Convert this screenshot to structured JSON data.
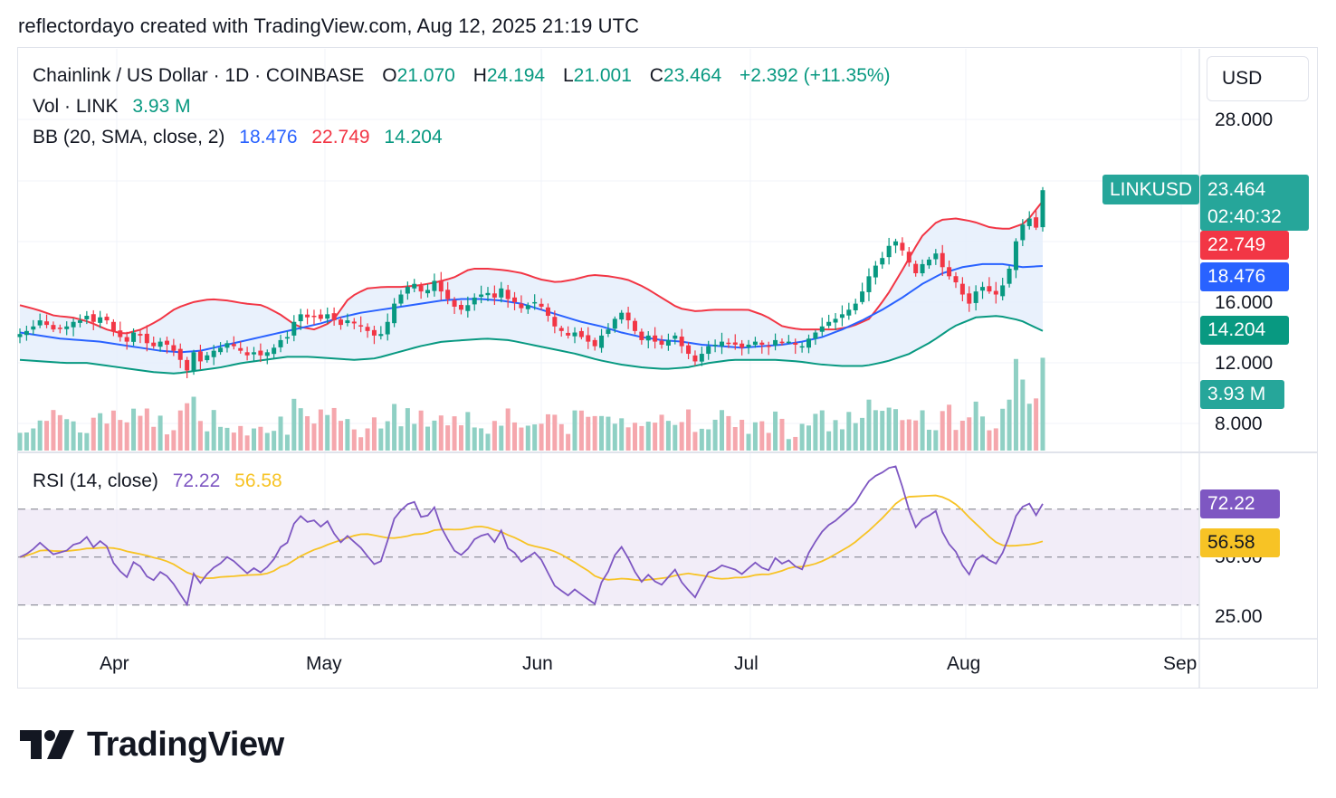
{
  "header": {
    "text": "reflectordayo created with TradingView.com, Aug 12, 2025 21:19 UTC"
  },
  "legend": {
    "symbol": "Chainlink / US Dollar · 1D · COINBASE",
    "o_label": "O",
    "o_value": "21.070",
    "h_label": "H",
    "h_value": "24.194",
    "l_label": "L",
    "l_value": "21.001",
    "c_label": "C",
    "c_value": "23.464",
    "change": "+2.392 (+11.35%)",
    "vol_label": "Vol · LINK",
    "vol_value": "3.93 M",
    "bb_label": "BB (20, SMA, close, 2)",
    "bb_basis": "18.476",
    "bb_upper": "22.749",
    "bb_lower": "14.204",
    "rsi_label": "RSI (14, close)",
    "rsi_value": "72.22",
    "rsi_ma": "56.58"
  },
  "currency_button": "USD",
  "price_axis": [
    "28.000",
    "16.000",
    "12.000",
    "8.000"
  ],
  "rsi_axis": [
    "50.00",
    "25.00"
  ],
  "time_axis": [
    "Apr",
    "May",
    "Jun",
    "Jul",
    "Aug",
    "Sep"
  ],
  "tags": {
    "symbol": "LINKUSD",
    "last_price": "23.464",
    "countdown": "02:40:32",
    "upper": "22.749",
    "basis": "18.476",
    "lower": "14.204",
    "volume": "3.93 M",
    "rsi": "72.22",
    "rsi_ma": "56.58"
  },
  "colors": {
    "up": "#089981",
    "down": "#f23645",
    "basis": "#2962ff",
    "band_fill": "#e3eefb",
    "rsi_line": "#7e57c2",
    "rsi_ma": "#f7c325",
    "rsi_zone": "#ede7f6"
  },
  "logo_text": "TradingView",
  "chart_data": {
    "type": "candlestick",
    "title": "Chainlink / US Dollar · 1D · COINBASE",
    "ylabel": "USD",
    "x_ticks": [
      "Apr",
      "May",
      "Jun",
      "Jul",
      "Aug",
      "Sep"
    ],
    "ylim_approx": [
      8,
      28
    ],
    "close_series": [
      14.0,
      14.2,
      14.5,
      14.9,
      14.6,
      14.3,
      14.4,
      14.5,
      14.8,
      14.9,
      15.2,
      14.8,
      15.1,
      14.9,
      14.2,
      13.8,
      13.5,
      14.1,
      13.9,
      13.4,
      13.2,
      13.5,
      13.3,
      12.9,
      12.3,
      11.6,
      12.8,
      12.2,
      12.6,
      12.9,
      13.1,
      13.4,
      13.2,
      12.9,
      12.6,
      12.8,
      12.6,
      12.8,
      13.1,
      13.6,
      13.8,
      14.8,
      15.3,
      15.1,
      15.2,
      15.0,
      15.3,
      14.9,
      14.6,
      14.9,
      14.7,
      14.5,
      14.2,
      13.9,
      14.0,
      14.8,
      16.0,
      16.6,
      17.1,
      17.3,
      16.8,
      16.9,
      17.5,
      16.8,
      16.3,
      15.8,
      15.6,
      15.9,
      16.4,
      16.6,
      16.7,
      16.4,
      17.0,
      16.3,
      16.1,
      15.7,
      15.9,
      16.1,
      15.8,
      15.2,
      14.5,
      14.2,
      13.9,
      14.1,
      13.8,
      13.5,
      13.2,
      13.9,
      14.3,
      15.0,
      15.4,
      14.9,
      14.2,
      13.6,
      13.9,
      13.5,
      13.3,
      13.6,
      13.9,
      13.2,
      12.7,
      12.2,
      12.7,
      13.2,
      13.3,
      13.5,
      13.4,
      13.3,
      13.1,
      13.3,
      13.5,
      13.3,
      13.2,
      13.6,
      13.4,
      13.5,
      13.3,
      13.2,
      13.7,
      14.1,
      14.5,
      14.8,
      15.0,
      15.3,
      15.6,
      16.0,
      16.8,
      17.8,
      18.5,
      19.0,
      19.8,
      20.1,
      19.5,
      18.7,
      18.0,
      18.6,
      18.9,
      19.3,
      18.4,
      17.8,
      17.4,
      16.6,
      16.0,
      16.8,
      17.1,
      16.8,
      16.6,
      17.2,
      18.3,
      20.1,
      21.2,
      21.6,
      21.0,
      23.464
    ],
    "bollinger": {
      "upper_approx": [
        15.9,
        15.6,
        15.2,
        15.1,
        14.8,
        14.3,
        14.0,
        14.3,
        14.9,
        15.7,
        16.1,
        16.3,
        16.2,
        16.0,
        15.9,
        15.3,
        14.5,
        14.3,
        14.8,
        16.4,
        17.0,
        17.1,
        17.1,
        17.2,
        17.4,
        17.7,
        18.3,
        18.3,
        18.2,
        18.0,
        17.6,
        17.4,
        17.6,
        17.9,
        17.8,
        17.6,
        17.1,
        16.4,
        15.7,
        15.5,
        15.6,
        15.6,
        15.6,
        15.2,
        14.5,
        14.3,
        14.3,
        14.3,
        14.5,
        15.0,
        16.5,
        18.4,
        20.4,
        21.5,
        21.6,
        21.4,
        21.0,
        20.9,
        21.3,
        22.749
      ],
      "basis_approx": [
        14.1,
        13.9,
        13.7,
        13.6,
        13.5,
        13.3,
        13.1,
        12.9,
        12.8,
        12.9,
        13.2,
        13.5,
        13.8,
        14.1,
        14.4,
        14.7,
        15.1,
        15.4,
        15.6,
        15.8,
        16.0,
        16.2,
        16.3,
        16.3,
        16.2,
        16.0,
        15.6,
        15.2,
        14.8,
        14.5,
        14.1,
        13.8,
        13.6,
        13.5,
        13.3,
        13.2,
        13.1,
        13.2,
        13.3,
        13.5,
        13.8,
        14.3,
        14.9,
        15.6,
        16.4,
        17.3,
        18.0,
        18.4,
        18.6,
        18.6,
        18.4,
        18.476
      ],
      "lower_approx": [
        12.3,
        12.2,
        12.1,
        12.1,
        11.9,
        11.7,
        11.5,
        11.4,
        11.6,
        11.8,
        12.1,
        12.3,
        12.5,
        12.5,
        12.4,
        12.3,
        12.4,
        12.8,
        13.2,
        13.5,
        13.6,
        13.7,
        13.6,
        13.3,
        13.0,
        12.7,
        12.3,
        12.0,
        11.8,
        11.7,
        11.8,
        12.1,
        12.3,
        12.3,
        12.3,
        12.2,
        12.0,
        11.9,
        11.9,
        12.2,
        12.7,
        13.5,
        14.5,
        15.1,
        15.2,
        14.9,
        14.204
      ]
    },
    "rsi_ylim": [
      0,
      100
    ],
    "rsi_levels": [
      70,
      50,
      30
    ],
    "rsi_last": 72.22,
    "rsi_ma_last": 56.58
  }
}
